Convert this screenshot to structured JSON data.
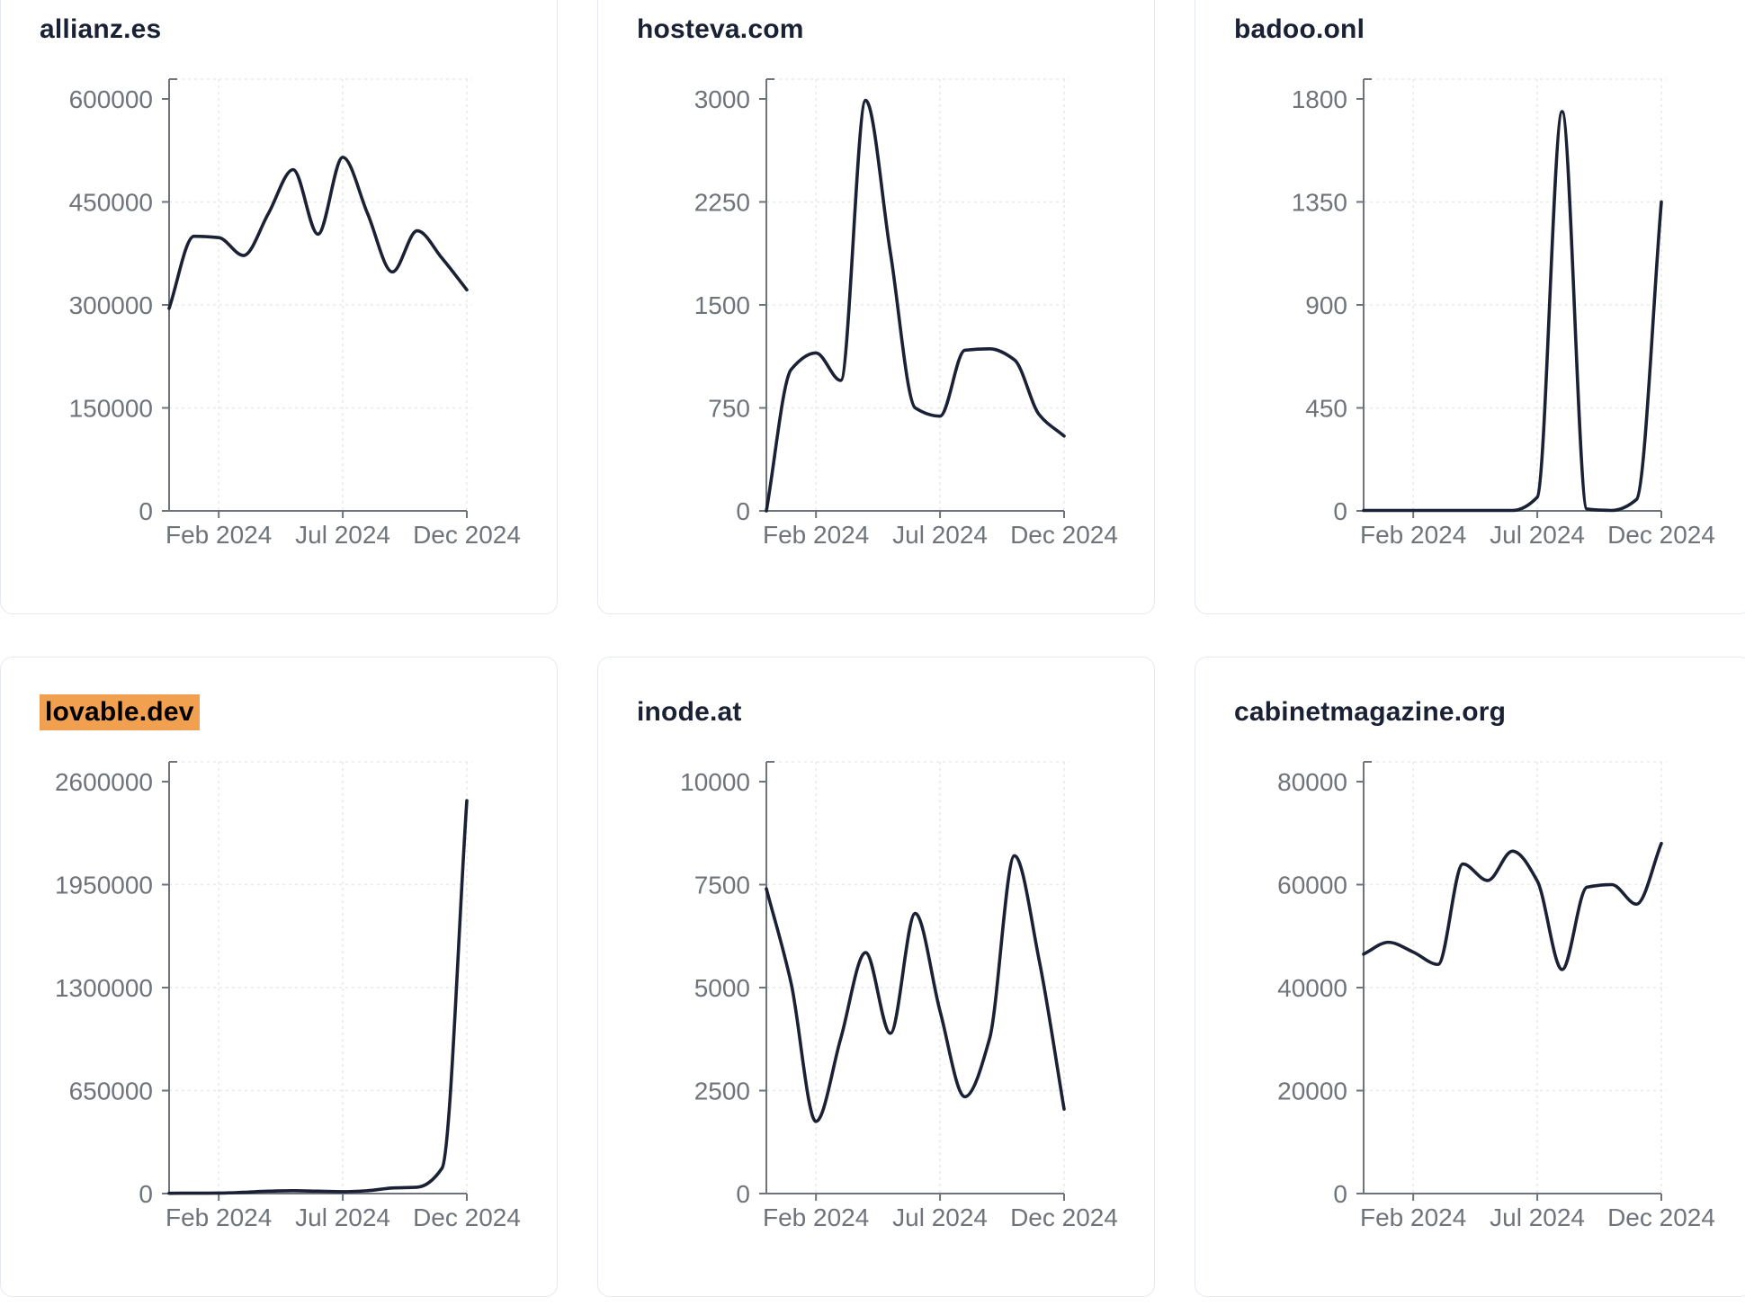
{
  "page": {
    "background": "#ffffff",
    "x_tick_labels": [
      "Feb 2024",
      "Jul 2024",
      "Dec 2024"
    ],
    "colors": {
      "line": "#1a2135",
      "title": "#1a2135",
      "axis": "#6f747b",
      "tick_text": "#6f747b",
      "gridline": "#e8eaee",
      "card_border": "#e4e9f1",
      "highlight_bg": "#f0a04f",
      "highlight_text": "#000000"
    }
  },
  "chart_data": [
    {
      "type": "line",
      "title": "allianz.es",
      "title_highlighted": false,
      "x": [
        "Dec 2023",
        "Jan 2024",
        "Feb 2024",
        "Mar 2024",
        "Apr 2024",
        "May 2024",
        "Jun 2024",
        "Jul 2024",
        "Aug 2024",
        "Sep 2024",
        "Oct 2024",
        "Nov 2024",
        "Dec 2024"
      ],
      "values": [
        295000,
        400000,
        398000,
        372000,
        433000,
        497000,
        403000,
        515000,
        433000,
        348000,
        408000,
        368000,
        322000
      ],
      "y_ticks": [
        0,
        150000,
        300000,
        450000,
        600000
      ],
      "ylim": [
        0,
        600000
      ],
      "x_tick_labels": [
        "Feb 2024",
        "Jul 2024",
        "Dec 2024"
      ],
      "x_tick_indices": [
        2,
        7,
        12
      ],
      "grid": true,
      "legend": "none"
    },
    {
      "type": "line",
      "title": "hosteva.com",
      "title_highlighted": false,
      "x": [
        "Dec 2023",
        "Jan 2024",
        "Feb 2024",
        "Mar 2024",
        "Apr 2024",
        "May 2024",
        "Jun 2024",
        "Jul 2024",
        "Aug 2024",
        "Sep 2024",
        "Oct 2024",
        "Nov 2024",
        "Dec 2024"
      ],
      "values": [
        0,
        1030,
        1150,
        950,
        2990,
        1880,
        750,
        690,
        1170,
        1180,
        1100,
        700,
        545
      ],
      "y_ticks": [
        0,
        750,
        1500,
        2250,
        3000
      ],
      "ylim": [
        0,
        3000
      ],
      "x_tick_labels": [
        "Feb 2024",
        "Jul 2024",
        "Dec 2024"
      ],
      "x_tick_indices": [
        2,
        7,
        12
      ],
      "grid": true,
      "legend": "none"
    },
    {
      "type": "line",
      "title": "badoo.onl",
      "title_highlighted": false,
      "x": [
        "Dec 2023",
        "Jan 2024",
        "Feb 2024",
        "Mar 2024",
        "Apr 2024",
        "May 2024",
        "Jun 2024",
        "Jul 2024",
        "Aug 2024",
        "Sep 2024",
        "Oct 2024",
        "Nov 2024",
        "Dec 2024"
      ],
      "values": [
        2,
        2,
        2,
        2,
        2,
        2,
        2,
        60,
        1745,
        8,
        2,
        50,
        1350
      ],
      "y_ticks": [
        0,
        450,
        900,
        1350,
        1800
      ],
      "ylim": [
        0,
        1800
      ],
      "x_tick_labels": [
        "Feb 2024",
        "Jul 2024",
        "Dec 2024"
      ],
      "x_tick_indices": [
        2,
        7,
        12
      ],
      "grid": true,
      "legend": "none"
    },
    {
      "type": "line",
      "title": "lovable.dev",
      "title_highlighted": true,
      "x": [
        "Dec 2023",
        "Jan 2024",
        "Feb 2024",
        "Mar 2024",
        "Apr 2024",
        "May 2024",
        "Jun 2024",
        "Jul 2024",
        "Aug 2024",
        "Sep 2024",
        "Oct 2024",
        "Nov 2024",
        "Dec 2024"
      ],
      "values": [
        2000,
        2500,
        3000,
        8000,
        15000,
        18000,
        15000,
        12000,
        18000,
        35000,
        40000,
        160000,
        2480000
      ],
      "y_ticks": [
        0,
        650000,
        1300000,
        1950000,
        2600000
      ],
      "ylim": [
        0,
        2600000
      ],
      "x_tick_labels": [
        "Feb 2024",
        "Jul 2024",
        "Dec 2024"
      ],
      "x_tick_indices": [
        2,
        7,
        12
      ],
      "grid": true,
      "legend": "none"
    },
    {
      "type": "line",
      "title": "inode.at",
      "title_highlighted": false,
      "x": [
        "Dec 2023",
        "Jan 2024",
        "Feb 2024",
        "Mar 2024",
        "Apr 2024",
        "May 2024",
        "Jun 2024",
        "Jul 2024",
        "Aug 2024",
        "Sep 2024",
        "Oct 2024",
        "Nov 2024",
        "Dec 2024"
      ],
      "values": [
        7400,
        5100,
        1750,
        3770,
        5850,
        3890,
        6800,
        4430,
        2350,
        3770,
        8200,
        5650,
        2050
      ],
      "y_ticks": [
        0,
        2500,
        5000,
        7500,
        10000
      ],
      "ylim": [
        0,
        10000
      ],
      "x_tick_labels": [
        "Feb 2024",
        "Jul 2024",
        "Dec 2024"
      ],
      "x_tick_indices": [
        2,
        7,
        12
      ],
      "grid": true,
      "legend": "none"
    },
    {
      "type": "line",
      "title": "cabinetmagazine.org",
      "title_highlighted": false,
      "x": [
        "Dec 2023",
        "Jan 2024",
        "Feb 2024",
        "Mar 2024",
        "Apr 2024",
        "May 2024",
        "Jun 2024",
        "Jul 2024",
        "Aug 2024",
        "Sep 2024",
        "Oct 2024",
        "Nov 2024",
        "Dec 2024"
      ],
      "values": [
        46500,
        48800,
        46900,
        44500,
        64000,
        60800,
        66500,
        60700,
        43500,
        59500,
        60000,
        56200,
        68000
      ],
      "y_ticks": [
        0,
        20000,
        40000,
        60000,
        80000
      ],
      "ylim": [
        0,
        80000
      ],
      "x_tick_labels": [
        "Feb 2024",
        "Jul 2024",
        "Dec 2024"
      ],
      "x_tick_indices": [
        2,
        7,
        12
      ],
      "grid": true,
      "legend": "none"
    }
  ]
}
